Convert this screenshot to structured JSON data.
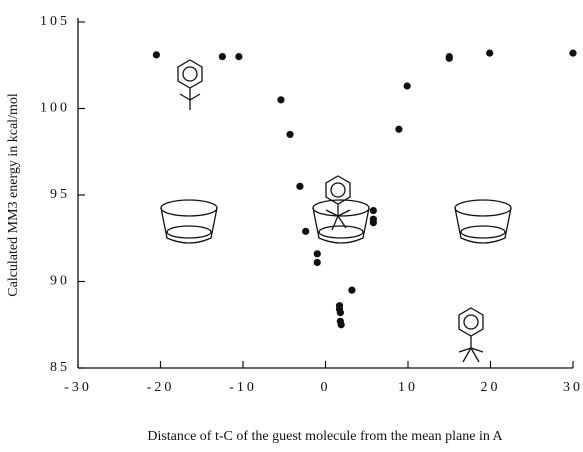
{
  "chart_data": {
    "type": "scatter",
    "x_label": "Distance of t-C of the guest molecule from the mean plane in A",
    "y_label": "Calculated MM3 energy in kcal/mol",
    "x": [
      -20.5,
      -12.5,
      -10.5,
      -5.4,
      -4.3,
      -3.1,
      -2.4,
      -1.0,
      -1.0,
      1.7,
      1.7,
      1.8,
      1.8,
      1.9,
      3.2,
      5.8,
      5.8,
      5.8,
      8.9,
      9.9,
      15.0,
      15.0,
      19.9,
      30
    ],
    "values": [
      103.1,
      103.0,
      103.0,
      100.5,
      98.5,
      95.5,
      92.9,
      91.6,
      91.1,
      88.6,
      88.4,
      88.2,
      87.7,
      87.5,
      89.5,
      94.1,
      93.6,
      93.4,
      98.8,
      101.3,
      103.0,
      102.9,
      103.2,
      103.2
    ],
    "color": "#111111",
    "xlim": [
      -30,
      30
    ],
    "xticks": [
      -30,
      -20,
      -10,
      0,
      10,
      20,
      30
    ],
    "ylim": [
      85,
      105
    ],
    "yticks": [
      85,
      90,
      95,
      100,
      105
    ],
    "grid": false
  }
}
